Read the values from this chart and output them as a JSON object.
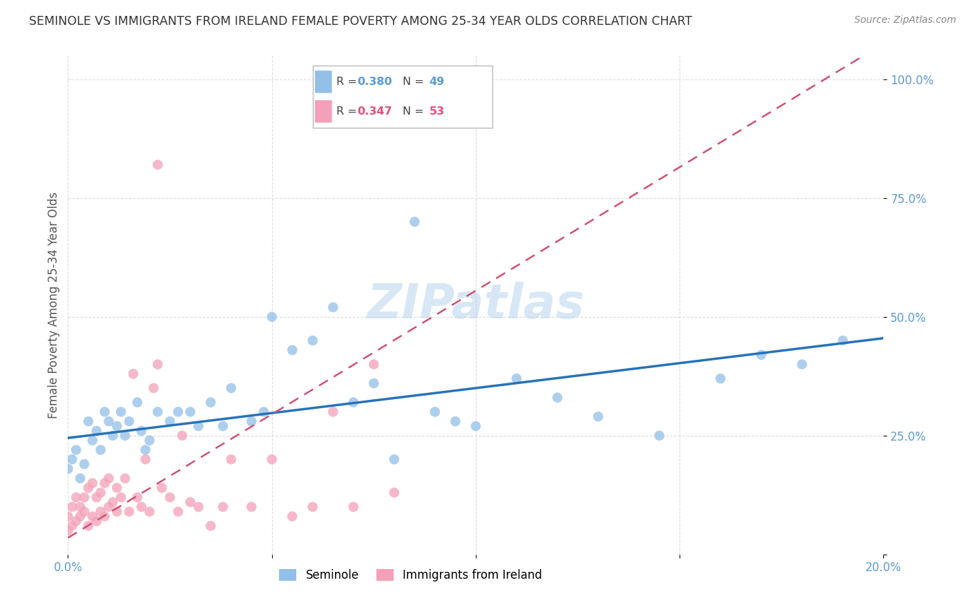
{
  "title": "SEMINOLE VS IMMIGRANTS FROM IRELAND FEMALE POVERTY AMONG 25-34 YEAR OLDS CORRELATION CHART",
  "source": "Source: ZipAtlas.com",
  "ylabel": "Female Poverty Among 25-34 Year Olds",
  "xlim": [
    0,
    0.2
  ],
  "ylim": [
    0,
    1.05
  ],
  "seminole_R": 0.38,
  "seminole_N": 49,
  "ireland_R": 0.347,
  "ireland_N": 53,
  "seminole_color": "#92c0e8",
  "ireland_color": "#f4a0b8",
  "seminole_line_color": "#2772b8",
  "ireland_line_color": "#d05070",
  "watermark": "ZIPatlas",
  "background_color": "#ffffff",
  "grid_color": "#cccccc",
  "title_color": "#333333",
  "source_color": "#888888",
  "tick_color": "#5b9bd5",
  "ylabel_color": "#555555"
}
